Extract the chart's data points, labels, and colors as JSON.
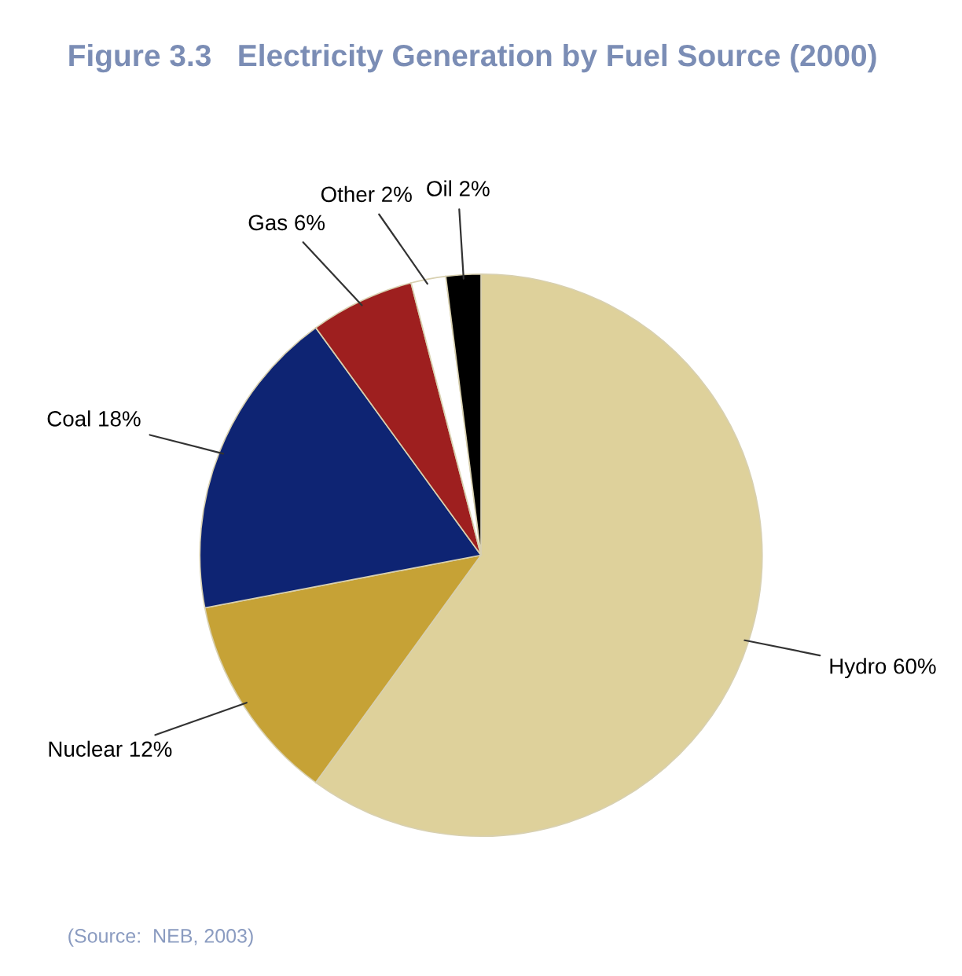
{
  "chart_data": {
    "type": "pie",
    "title": "Figure 3.3   Electricity Generation by Fuel Source (2000)",
    "categories": [
      "Hydro 60%",
      "Nuclear 12%",
      "Coal 18%",
      "Gas 6%",
      "Other 2%",
      "Oil 2%"
    ],
    "values": [
      60,
      12,
      18,
      6,
      2,
      2
    ],
    "colors": [
      "#ded19b",
      "#c6a236",
      "#0e2473",
      "#9e1f1f",
      "#ffffff",
      "#000000"
    ],
    "annotations": [
      "(Source:  NEB, 2003)"
    ]
  }
}
